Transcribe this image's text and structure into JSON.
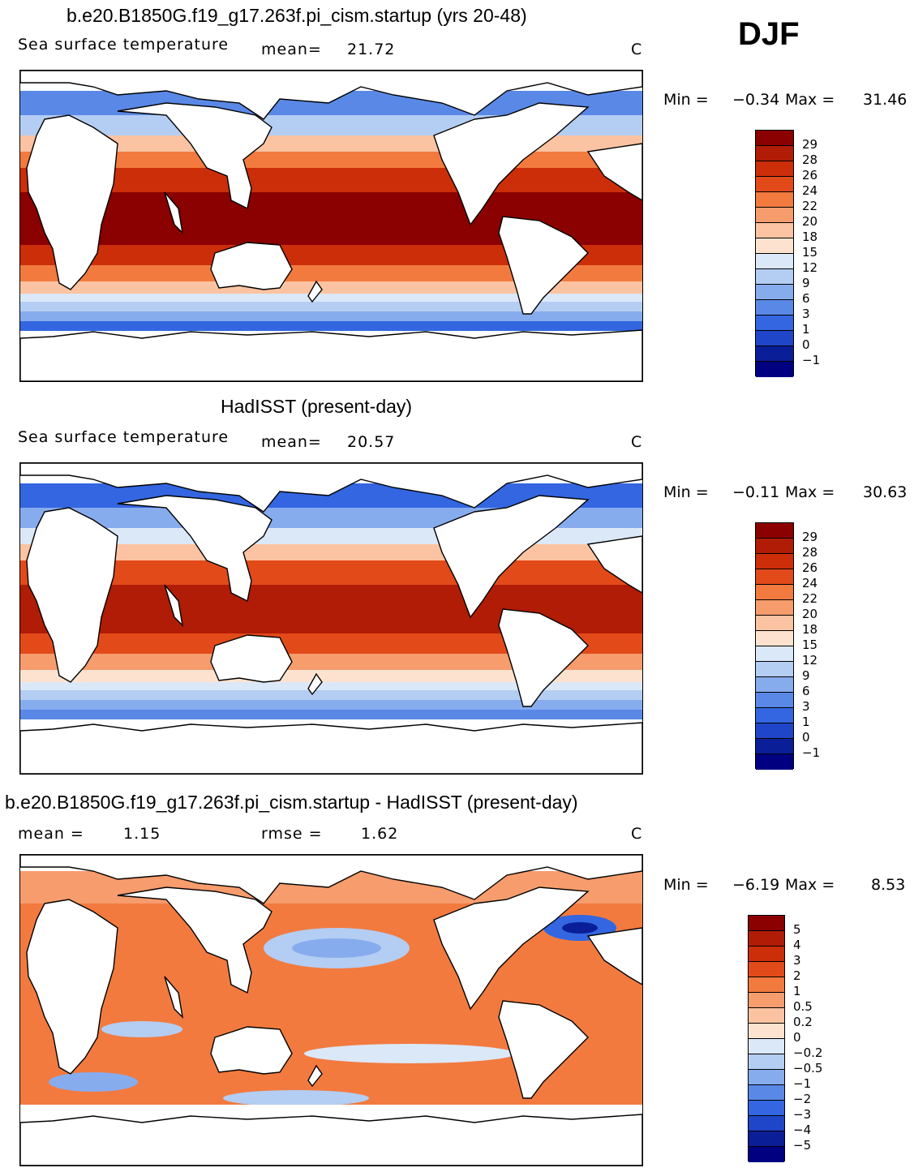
{
  "season": "DJF",
  "colorbar_levels": {
    "sst": [
      "29",
      "28",
      "26",
      "24",
      "22",
      "20",
      "18",
      "15",
      "12",
      "9",
      "6",
      "3",
      "1",
      "0",
      "−1"
    ],
    "diff": [
      "5",
      "4",
      "3",
      "2",
      "1",
      "0.5",
      "0.2",
      "0",
      "−0.2",
      "−0.5",
      "−1",
      "−2",
      "−3",
      "−4",
      "−5"
    ]
  },
  "colors": {
    "sst": [
      "#8b0000",
      "#b01c05",
      "#cc2e0a",
      "#e34a1a",
      "#f27a3f",
      "#f79c6d",
      "#fbc3a1",
      "#fde3cf",
      "#dbe8f8",
      "#b4cdf2",
      "#87acee",
      "#5a88e6",
      "#3366e0",
      "#1f45c8",
      "#0a1e98",
      "#000080"
    ],
    "diff": [
      "#8b0000",
      "#b01c05",
      "#cc2e0a",
      "#e34a1a",
      "#f27a3f",
      "#f79c6d",
      "#fbc3a1",
      "#fde3cf",
      "#dbe8f8",
      "#b4cdf2",
      "#87acee",
      "#5a88e6",
      "#3366e0",
      "#1f45c8",
      "#0a1e98",
      "#000080"
    ]
  },
  "panels": [
    {
      "id": "model",
      "title": "b.e20.B1850G.f19_g17.263f.pi_cism.startup (yrs 20-48)",
      "left_label": "Sea surface temperature",
      "stat_label": "mean=",
      "stat_value": "21.72",
      "stat2_label": "",
      "stat2_value": "",
      "units": "C",
      "min_label": "Min =",
      "min_value": "−0.34",
      "max_label": "Max =",
      "max_value": "31.46",
      "colorbar": "sst"
    },
    {
      "id": "obs",
      "title": "HadISST (present-day)",
      "left_label": "Sea surface temperature",
      "stat_label": "mean=",
      "stat_value": "20.57",
      "stat2_label": "",
      "stat2_value": "",
      "units": "C",
      "min_label": "Min =",
      "min_value": "−0.11",
      "max_label": "Max =",
      "max_value": "30.63",
      "colorbar": "sst"
    },
    {
      "id": "diff",
      "title": "b.e20.B1850G.f19_g17.263f.pi_cism.startup - HadISST (present-day)",
      "left_label": "",
      "stat_label": "mean =",
      "stat_value": "1.15",
      "stat2_label": "rmse =",
      "stat2_value": "1.62",
      "units": "C",
      "min_label": "Min =",
      "min_value": "−6.19",
      "max_label": "Max =",
      "max_value": "8.53",
      "colorbar": "diff"
    }
  ]
}
